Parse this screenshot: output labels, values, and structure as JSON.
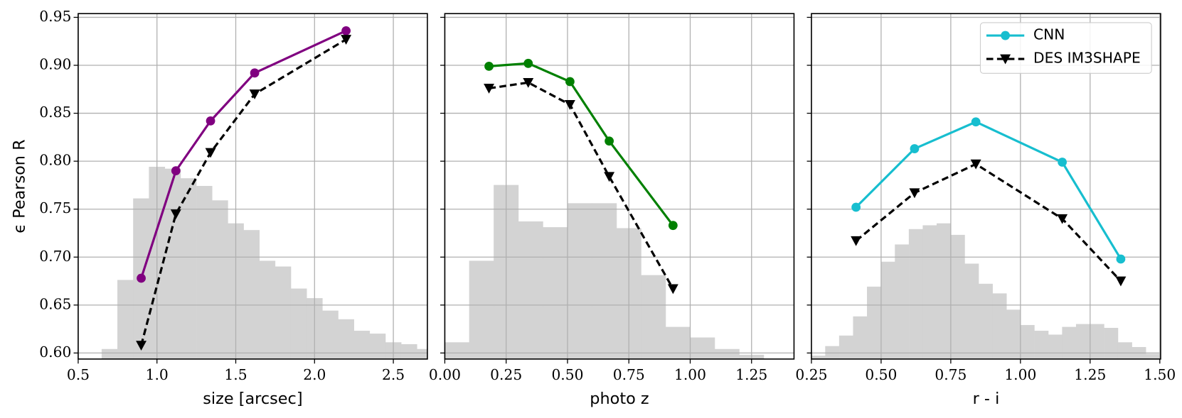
{
  "chart_data": [
    {
      "type": "line",
      "xlabel": "size [arcsec]",
      "ylabel": "ϵ Pearson R",
      "show_ytick_labels": true,
      "grid": true,
      "xlim": [
        0.5,
        2.716
      ],
      "ylim": [
        0.5937,
        0.9539
      ],
      "xticks": [
        0.5,
        {
          "value": 1,
          "label": "1.0"
        },
        1.5,
        {
          "value": 2,
          "label": "2.0"
        },
        2.5
      ],
      "yticks": [
        {
          "value": 0.6,
          "label": "0.60"
        },
        0.65,
        {
          "value": 0.7,
          "label": "0.70"
        },
        0.75,
        {
          "value": 0.8,
          "label": "0.80"
        },
        0.85,
        {
          "value": 0.9,
          "label": "0.90"
        },
        0.95
      ],
      "histogram": {
        "color": "#d3d3d3",
        "bins": [
          0.65,
          0.75,
          0.85,
          0.95,
          1.05,
          1.15,
          1.25,
          1.35,
          1.45,
          1.55,
          1.65,
          1.75,
          1.85,
          1.95,
          2.05,
          2.15,
          2.25,
          2.35,
          2.45,
          2.55,
          2.65,
          2.75
        ],
        "counts": [
          0.604,
          0.676,
          0.761,
          0.794,
          0.792,
          0.782,
          0.774,
          0.759,
          0.735,
          0.728,
          0.696,
          0.69,
          0.667,
          0.657,
          0.644,
          0.635,
          0.623,
          0.62,
          0.611,
          0.609,
          0.604
        ]
      },
      "x": [
        0.9,
        1.12,
        1.34,
        1.62,
        2.2
      ],
      "series": [
        {
          "color": "#800080",
          "marker": "circle",
          "dashed": false,
          "values": [
            0.678,
            0.79,
            0.842,
            0.892,
            0.936
          ]
        },
        {
          "color": "#000000",
          "marker": "triangle-down",
          "dashed": true,
          "values": [
            0.608,
            0.745,
            0.809,
            0.87,
            0.927
          ]
        }
      ]
    },
    {
      "type": "line",
      "xlabel": "photo z",
      "show_ytick_labels": false,
      "grid": true,
      "xlim": [
        0,
        1.423
      ],
      "ylim": [
        0.5937,
        0.9539
      ],
      "xticks": [
        {
          "value": 0,
          "label": "0.00"
        },
        0.25,
        {
          "value": 0.5,
          "label": "0.50"
        },
        0.75,
        {
          "value": 1,
          "label": "1.00"
        },
        1.25
      ],
      "yticks": [
        0.6,
        0.65,
        0.7,
        0.75,
        0.8,
        0.85,
        0.9,
        0.95
      ],
      "histogram": {
        "color": "#d3d3d3",
        "bins": [
          0,
          0.1,
          0.2,
          0.3,
          0.4,
          0.5,
          0.6,
          0.7,
          0.8,
          0.9,
          1.0,
          1.1,
          1.2,
          1.3
        ],
        "counts": [
          0.611,
          0.696,
          0.775,
          0.737,
          0.731,
          0.756,
          0.756,
          0.73,
          0.681,
          0.627,
          0.616,
          0.604,
          0.598
        ]
      },
      "x": [
        0.18,
        0.34,
        0.51,
        0.67,
        0.93
      ],
      "series": [
        {
          "color": "#008000",
          "marker": "circle",
          "dashed": false,
          "values": [
            0.899,
            0.902,
            0.883,
            0.821,
            0.733
          ]
        },
        {
          "color": "#000000",
          "marker": "triangle-down",
          "dashed": true,
          "values": [
            0.876,
            0.882,
            0.859,
            0.784,
            0.667
          ]
        }
      ]
    },
    {
      "type": "line",
      "xlabel": "r - i",
      "show_ytick_labels": false,
      "grid": true,
      "legend": "upper right",
      "xlim": [
        0.25,
        1.503
      ],
      "ylim": [
        0.5937,
        0.9539
      ],
      "xticks": [
        0.25,
        {
          "value": 0.5,
          "label": "0.50"
        },
        0.75,
        {
          "value": 1,
          "label": "1.00"
        },
        1.25,
        {
          "value": 1.5,
          "label": "1.50"
        }
      ],
      "yticks": [
        0.6,
        0.65,
        0.7,
        0.75,
        0.8,
        0.85,
        0.9,
        0.95
      ],
      "histogram": {
        "color": "#d3d3d3",
        "bins": [
          0.25,
          0.3,
          0.35,
          0.4,
          0.45,
          0.5,
          0.55,
          0.6,
          0.65,
          0.7,
          0.75,
          0.8,
          0.85,
          0.9,
          0.95,
          1.0,
          1.05,
          1.1,
          1.15,
          1.2,
          1.25,
          1.3,
          1.35,
          1.4,
          1.45,
          1.5
        ],
        "counts": [
          0.597,
          0.607,
          0.618,
          0.638,
          0.669,
          0.695,
          0.713,
          0.729,
          0.733,
          0.735,
          0.723,
          0.693,
          0.672,
          0.662,
          0.645,
          0.629,
          0.623,
          0.619,
          0.627,
          0.63,
          0.63,
          0.626,
          0.611,
          0.606,
          0.599
        ]
      },
      "x": [
        0.41,
        0.62,
        0.84,
        1.15,
        1.36
      ],
      "series": [
        {
          "name": "CNN",
          "color": "#17becf",
          "marker": "circle",
          "dashed": false,
          "values": [
            0.752,
            0.813,
            0.841,
            0.799,
            0.698
          ]
        },
        {
          "name": "DES IM3SHAPE",
          "color": "#000000",
          "marker": "triangle-down",
          "dashed": true,
          "values": [
            0.717,
            0.767,
            0.797,
            0.74,
            0.675
          ]
        }
      ]
    }
  ]
}
